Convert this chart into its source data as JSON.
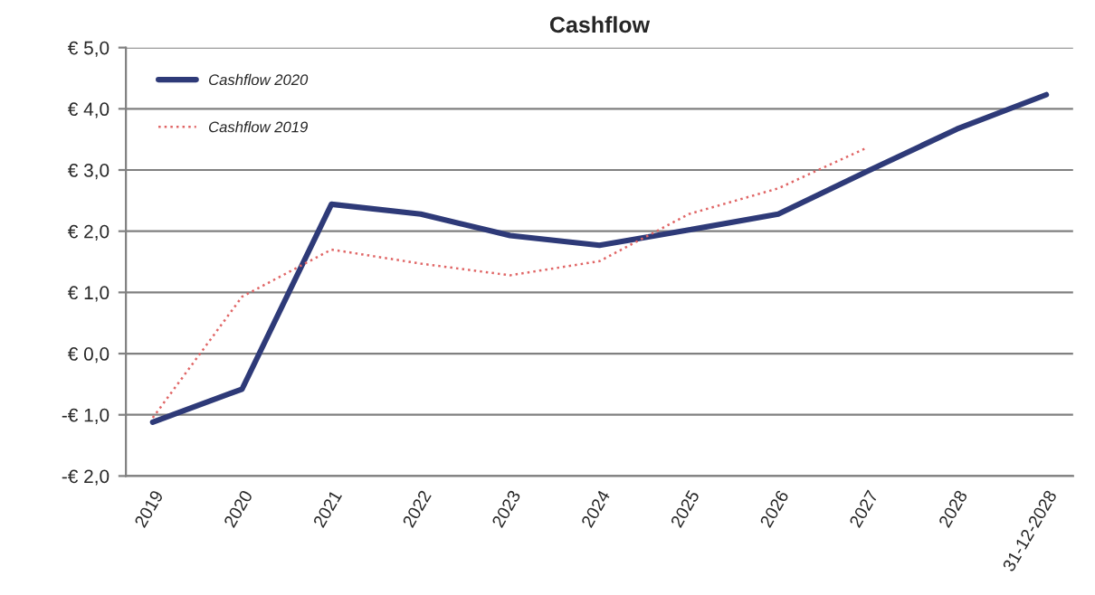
{
  "chart_data": {
    "type": "line",
    "title": "Cashflow",
    "categories": [
      "2019",
      "2020",
      "2021",
      "2022",
      "2023",
      "2024",
      "2025",
      "2026",
      "2027",
      "2028",
      "31-12-2028"
    ],
    "series": [
      {
        "name": "Cashflow 2020",
        "color": "#2e3a78",
        "values": [
          -1.12,
          -0.58,
          2.44,
          2.28,
          1.93,
          1.77,
          2.02,
          2.28,
          2.98,
          3.67,
          4.23
        ]
      },
      {
        "name": "Cashflow 2019",
        "color": "#e06666",
        "line_style": "dotted",
        "values": [
          -1.05,
          0.93,
          1.7,
          1.47,
          1.28,
          1.51,
          2.28,
          2.7,
          3.37,
          null,
          null
        ]
      }
    ],
    "ylim": [
      -2,
      5
    ],
    "yticks": [
      {
        "value": -2,
        "label": "-€ 2,0"
      },
      {
        "value": -1,
        "label": "-€ 1,0"
      },
      {
        "value": 0,
        "label": "€ 0,0"
      },
      {
        "value": 1,
        "label": "€ 1,0"
      },
      {
        "value": 2,
        "label": "€ 2,0"
      },
      {
        "value": 3,
        "label": "€ 3,0"
      },
      {
        "value": 4,
        "label": "€ 4,0"
      },
      {
        "value": 5,
        "label": "€ 5,0"
      }
    ],
    "grid": "y",
    "legend": "top left",
    "marker": "none"
  }
}
